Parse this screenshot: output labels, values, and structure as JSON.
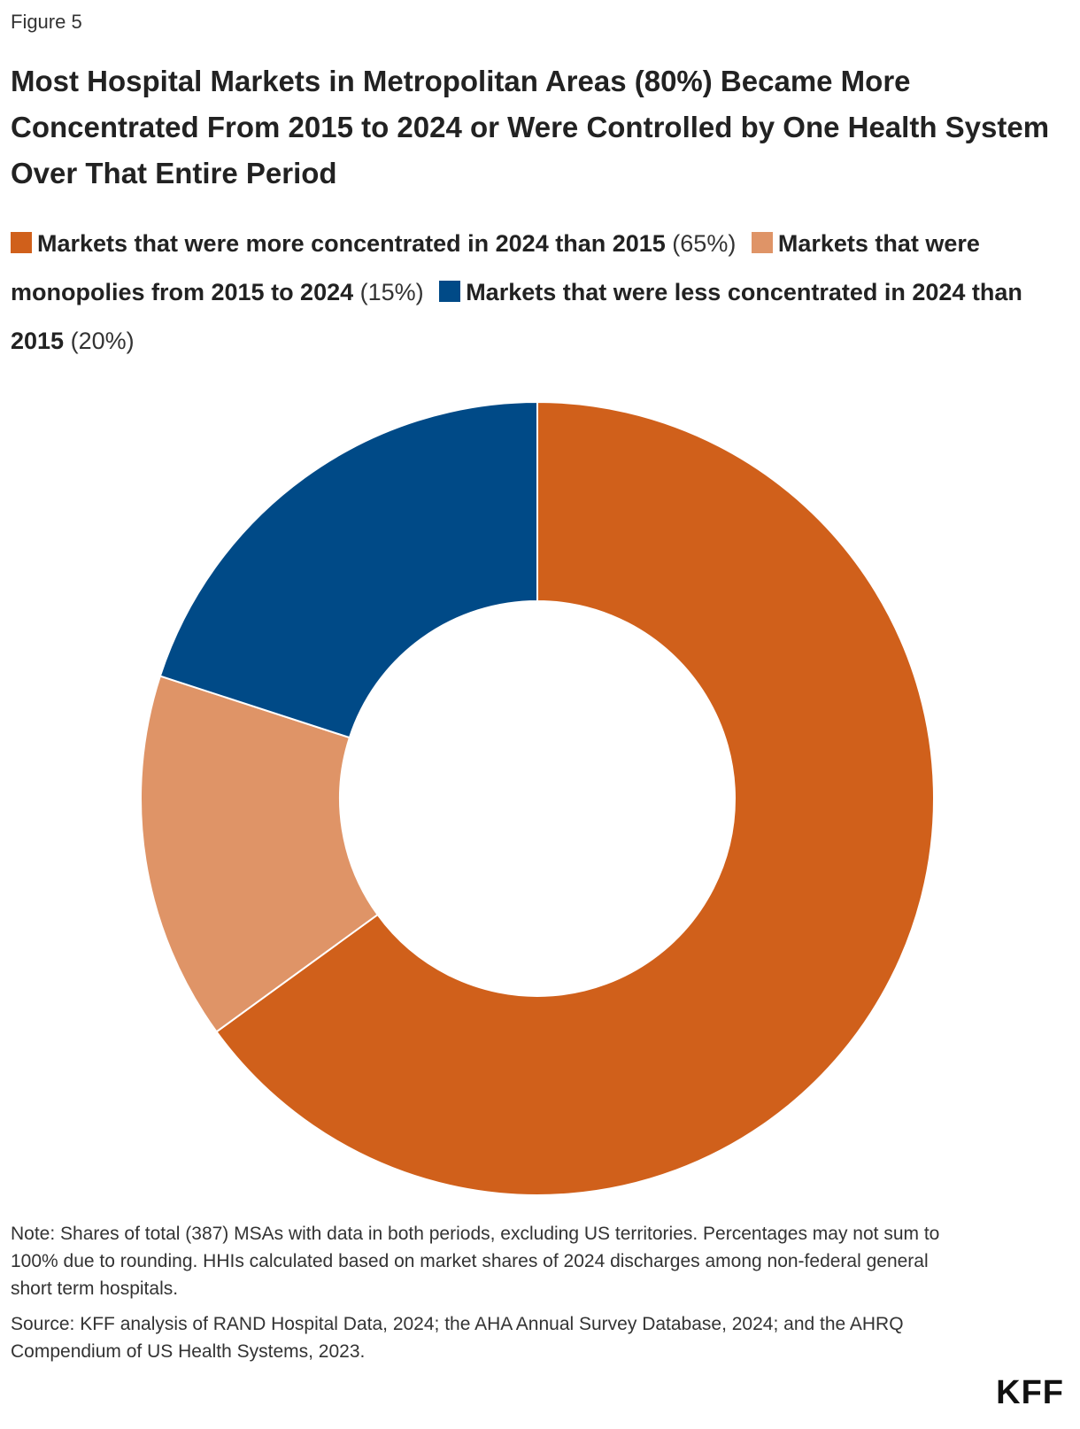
{
  "chart_data": {
    "type": "donut",
    "figure_label": "Figure 5",
    "title": "Most Hospital Markets in Metropolitan Areas (80%) Became More Concentrated From 2015 to 2024 or Were Controlled by One Health System Over That Entire Period",
    "categories": [
      "Markets that were more concentrated in 2024 than 2015",
      "Markets that were monopolies from 2015 to 2024",
      "Markets that were less concentrated in 2024 than 2015"
    ],
    "values": [
      65,
      15,
      20
    ],
    "value_labels": [
      "(65%)",
      "(15%)",
      "(20%)"
    ],
    "colors": [
      "#d0601b",
      "#df9467",
      "#004a87"
    ],
    "note": "Note: Shares of total (387) MSAs with data in both periods, excluding US territories. Percentages may not sum to 100% due to rounding. HHIs calculated based on market shares of 2024 discharges among non-federal general short term hospitals.",
    "source": "Source: KFF analysis of RAND Hospital Data, 2024; the AHA Annual Survey Database, 2024; and the AHRQ Compendium of US Health Systems, 2023.",
    "logo": "KFF"
  }
}
